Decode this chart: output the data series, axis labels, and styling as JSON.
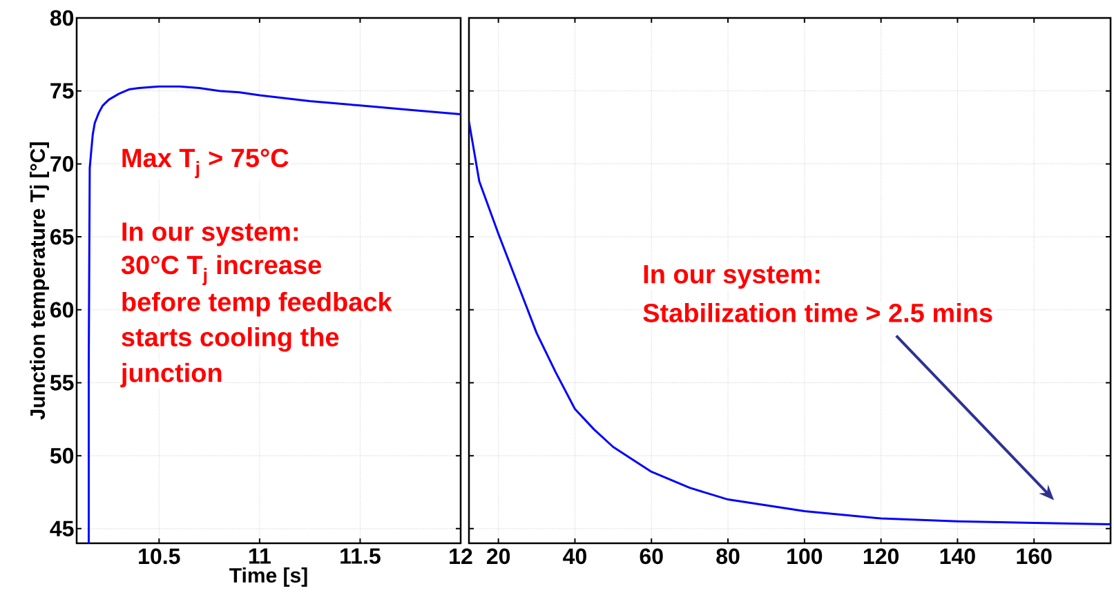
{
  "chart_data": [
    {
      "type": "line",
      "xlabel": "Time [s]",
      "ylabel": "Junction temperature Tj [°C]",
      "xlim": [
        10.09,
        12
      ],
      "xticks": [
        10.5,
        11,
        11.5,
        12
      ],
      "ylim": [
        44,
        80
      ],
      "yticks": [
        45,
        50,
        55,
        60,
        65,
        70,
        75,
        80
      ],
      "grid": true,
      "series": [
        {
          "color": "#0000ff",
          "x": [
            10.15,
            10.15,
            10.155,
            10.16,
            10.17,
            10.18,
            10.2,
            10.22,
            10.25,
            10.3,
            10.35,
            10.4,
            10.5,
            10.6,
            10.7,
            10.8,
            10.9,
            11,
            11.25,
            11.5,
            11.75,
            12
          ],
          "values": [
            44,
            56,
            69.7,
            70.5,
            72,
            72.8,
            73.5,
            74,
            74.4,
            74.8,
            75.1,
            75.2,
            75.3,
            75.3,
            75.2,
            75,
            74.9,
            74.7,
            74.3,
            74,
            73.7,
            73.4
          ]
        }
      ],
      "annotations": [
        "Max T$_{j}$ > 75°C",
        "In our system:",
        "30°C T$_{j}$ increase",
        "before temp feedback",
        "starts cooling the",
        "junction"
      ]
    },
    {
      "type": "line",
      "xlim": [
        12.3,
        180
      ],
      "xticks": [
        20,
        40,
        60,
        80,
        100,
        120,
        140,
        160
      ],
      "ylim": [
        44,
        80
      ],
      "yticks": [
        45,
        50,
        55,
        60,
        65,
        70,
        75,
        80
      ],
      "grid": true,
      "tick_labels": "x",
      "series": [
        {
          "color": "#0000ff",
          "x": [
            12.3,
            15,
            20,
            25,
            30,
            35,
            40,
            45,
            50,
            60,
            70,
            80,
            100,
            120,
            140,
            160,
            180
          ],
          "values": [
            72.9,
            68.8,
            65.2,
            61.8,
            58.4,
            55.7,
            53.2,
            51.8,
            50.6,
            48.9,
            47.8,
            47,
            46.2,
            45.7,
            45.5,
            45.4,
            45.3
          ]
        }
      ],
      "annotations": [
        "In our system:",
        "Stabilization time > 2.5 mins"
      ]
    }
  ]
}
